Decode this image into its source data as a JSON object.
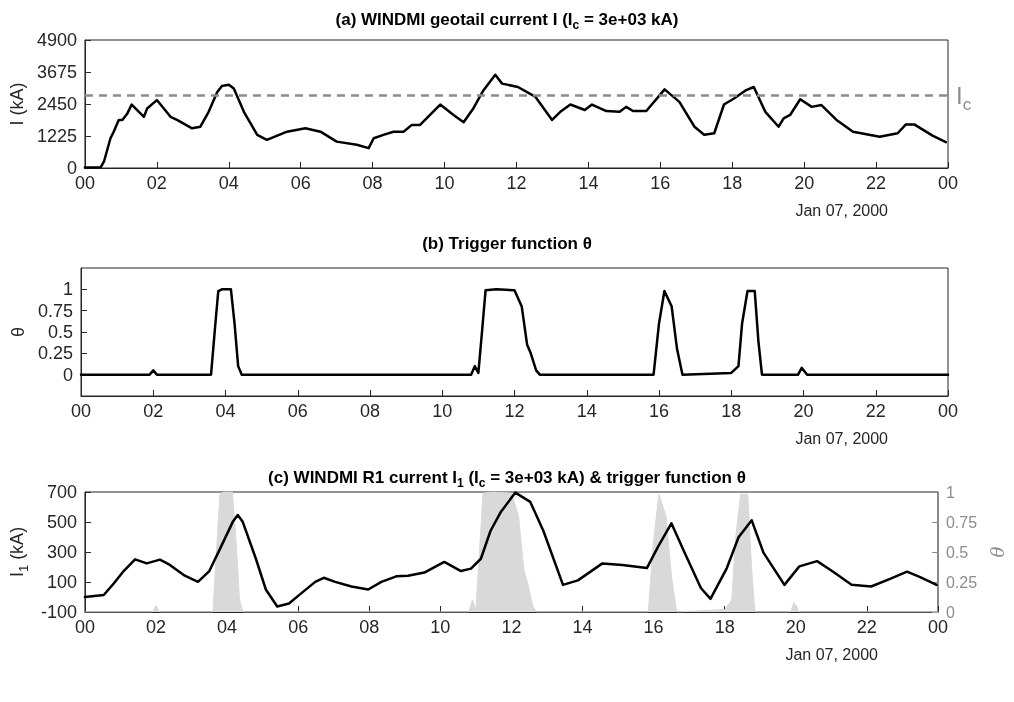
{
  "chart_data": [
    {
      "type": "line",
      "title": "(a) WINDMI geotail current I (I$_{c}$ = 3e+03 kA)",
      "ylabel": "I (kA)",
      "xlabel": "Jan 07, 2000",
      "xlim": [
        0,
        24
      ],
      "xticks": [
        {
          "value": 0,
          "label": "00"
        },
        {
          "value": 2,
          "label": "02"
        },
        {
          "value": 4,
          "label": "04"
        },
        {
          "value": 6,
          "label": "06"
        },
        {
          "value": 8,
          "label": "08"
        },
        10,
        12,
        14,
        16,
        18,
        20,
        22,
        {
          "value": 24,
          "label": "00"
        }
      ],
      "ylim": [
        0,
        4900
      ],
      "yticks": [
        0,
        1225,
        2450,
        3675,
        4900
      ],
      "marker": "none",
      "line_style": "solid",
      "ref_lines": [
        {
          "axis": "y",
          "value": 2770,
          "label": "I$_{c}$",
          "color": "#8c8c8c",
          "line_style": "dashed"
        }
      ],
      "series": [
        {
          "color": "#000000",
          "x": [
            0,
            0.44,
            0.53,
            0.71,
            0.8,
            0.94,
            1.04,
            1.18,
            1.3,
            1.64,
            1.73,
            2.0,
            2.38,
            2.56,
            2.98,
            3.21,
            3.44,
            3.68,
            3.81,
            4.0,
            4.14,
            4.42,
            4.79,
            5.06,
            5.62,
            6.13,
            6.55,
            7.0,
            7.56,
            7.89,
            8.03,
            8.3,
            8.58,
            8.86,
            9.09,
            9.32,
            9.88,
            10.25,
            10.53,
            10.8,
            11.08,
            11.41,
            11.6,
            12.04,
            12.53,
            12.99,
            13.22,
            13.5,
            13.9,
            14.1,
            14.5,
            14.87,
            15.05,
            15.24,
            15.61,
            16.12,
            16.53,
            16.95,
            17.22,
            17.5,
            17.77,
            18.05,
            18.37,
            18.6,
            18.92,
            19.29,
            19.43,
            19.61,
            19.89,
            20.21,
            20.48,
            20.9,
            21.36,
            22.1,
            22.6,
            22.83,
            23.06,
            23.57,
            23.94
          ],
          "values": [
            20,
            30,
            250,
            1140,
            1390,
            1840,
            1840,
            2090,
            2430,
            1960,
            2280,
            2600,
            1960,
            1840,
            1520,
            1580,
            2150,
            2910,
            3140,
            3190,
            3040,
            2150,
            1270,
            1080,
            1390,
            1520,
            1390,
            1010,
            890,
            760,
            1140,
            1270,
            1390,
            1390,
            1650,
            1650,
            2430,
            2030,
            1750,
            2280,
            2970,
            3570,
            3230,
            3100,
            2720,
            1840,
            2150,
            2430,
            2220,
            2430,
            2180,
            2150,
            2340,
            2180,
            2180,
            3010,
            2530,
            1580,
            1270,
            1330,
            2430,
            2660,
            2970,
            3100,
            2150,
            1580,
            1900,
            2030,
            2630,
            2340,
            2410,
            1840,
            1390,
            1200,
            1330,
            1670,
            1670,
            1240,
            990
          ]
        }
      ]
    },
    {
      "type": "line",
      "title": "(b) Trigger function θ",
      "ylabel": "θ",
      "xlabel": "Jan 07, 2000",
      "xlim": [
        0,
        24
      ],
      "xticks": [
        {
          "value": 0,
          "label": "00"
        },
        {
          "value": 2,
          "label": "02"
        },
        {
          "value": 4,
          "label": "04"
        },
        {
          "value": 6,
          "label": "06"
        },
        {
          "value": 8,
          "label": "08"
        },
        10,
        12,
        14,
        16,
        18,
        20,
        22,
        {
          "value": 24,
          "label": "00"
        }
      ],
      "ylim": [
        -0.25,
        1.25
      ],
      "yticks": [
        0,
        0.25,
        0.5,
        0.75,
        1
      ],
      "marker": "none",
      "line_style": "solid",
      "series": [
        {
          "color": "#000000",
          "x": [
            0,
            1.9,
            2.0,
            2.1,
            3.6,
            3.7,
            3.8,
            3.9,
            4.15,
            4.25,
            4.35,
            4.45,
            10.8,
            10.9,
            11.0,
            11.1,
            11.2,
            11.5,
            12.0,
            12.2,
            12.35,
            12.45,
            12.6,
            12.7,
            15.85,
            16.0,
            16.15,
            16.35,
            16.5,
            16.65,
            18.0,
            18.2,
            18.3,
            18.45,
            18.65,
            18.75,
            18.85,
            19.85,
            19.95,
            20.1,
            24
          ],
          "values": [
            0,
            0,
            0.05,
            0,
            0,
            0.5,
            0.98,
            1,
            1,
            0.6,
            0.1,
            0,
            0,
            0.1,
            0.02,
            0.5,
            0.99,
            1,
            0.99,
            0.8,
            0.35,
            0.25,
            0.05,
            0,
            0,
            0.6,
            0.98,
            0.8,
            0.3,
            0,
            0.02,
            0.1,
            0.6,
            0.98,
            0.98,
            0.4,
            0,
            0,
            0.08,
            0,
            0
          ]
        }
      ]
    },
    {
      "type": "line",
      "title": "(c) WINDMI R1 current I$_{1}$ (I$_{c}$ = 3e+03 kA) & trigger function θ",
      "ylabel": "I$_{1}$ (kA)",
      "y2label": "θ",
      "xlabel": "Jan 07, 2000",
      "xlim": [
        0,
        24
      ],
      "xticks": [
        {
          "value": 0,
          "label": "00"
        },
        {
          "value": 2,
          "label": "02"
        },
        {
          "value": 4,
          "label": "04"
        },
        {
          "value": 6,
          "label": "06"
        },
        {
          "value": 8,
          "label": "08"
        },
        10,
        12,
        14,
        16,
        18,
        20,
        22,
        {
          "value": 24,
          "label": "00"
        }
      ],
      "ylim": [
        -100,
        700
      ],
      "yticks": [
        -100,
        100,
        300,
        500,
        700
      ],
      "y2lim": [
        0,
        1
      ],
      "y2ticks": [
        0,
        0.25,
        0.5,
        0.75,
        1
      ],
      "marker": "none",
      "line_style": "solid",
      "series": [
        {
          "type": "area",
          "axis": "y2",
          "color": "#d9d9d9",
          "x": [
            0,
            1.9,
            2.0,
            2.1,
            3.6,
            3.7,
            3.8,
            3.9,
            4.15,
            4.25,
            4.35,
            4.45,
            10.8,
            10.9,
            11.0,
            11.1,
            11.2,
            11.5,
            12.0,
            12.2,
            12.35,
            12.45,
            12.6,
            12.7,
            15.85,
            16.0,
            16.15,
            16.35,
            16.5,
            16.65,
            18.0,
            18.2,
            18.3,
            18.45,
            18.65,
            18.75,
            18.85,
            19.85,
            19.95,
            20.1,
            24
          ],
          "values": [
            0,
            0,
            0.05,
            0,
            0,
            0.5,
            0.98,
            1,
            1,
            0.6,
            0.1,
            0,
            0,
            0.1,
            0.02,
            0.5,
            0.99,
            1,
            0.99,
            0.8,
            0.35,
            0.25,
            0.05,
            0,
            0,
            0.6,
            0.98,
            0.8,
            0.3,
            0,
            0.02,
            0.1,
            0.6,
            0.98,
            0.98,
            0.4,
            0,
            0,
            0.08,
            0,
            0
          ]
        },
        {
          "color": "#000000",
          "x": [
            0,
            0.53,
            0.81,
            1.09,
            1.41,
            1.74,
            2.11,
            2.39,
            2.81,
            3.18,
            3.5,
            3.79,
            4.16,
            4.3,
            4.44,
            4.81,
            5.09,
            5.41,
            5.74,
            6.11,
            6.48,
            6.72,
            7.04,
            7.5,
            7.97,
            8.34,
            8.76,
            9.09,
            9.55,
            10.11,
            10.58,
            10.86,
            11.14,
            11.41,
            11.69,
            12.11,
            12.53,
            12.9,
            13.45,
            13.87,
            14.56,
            15.12,
            15.81,
            16.13,
            16.5,
            16.87,
            17.33,
            17.6,
            18.06,
            18.39,
            18.76,
            19.09,
            19.68,
            20.1,
            20.6,
            21.02,
            21.57,
            22.12,
            22.67,
            23.13,
            23.5,
            23.96
          ],
          "values": [
            0,
            13,
            90,
            173,
            251,
            224,
            249,
            214,
            142,
            101,
            173,
            316,
            501,
            546,
            501,
            255,
            50,
            -63,
            -43,
            29,
            101,
            128,
            101,
            70,
            50,
            101,
            138,
            142,
            163,
            234,
            173,
            189,
            255,
            440,
            563,
            696,
            634,
            440,
            81,
            111,
            224,
            214,
            193,
            337,
            491,
            296,
            60,
            -12,
            193,
            398,
            511,
            296,
            81,
            204,
            239,
            173,
            81,
            70,
            122,
            169,
            132,
            81
          ]
        }
      ]
    }
  ]
}
